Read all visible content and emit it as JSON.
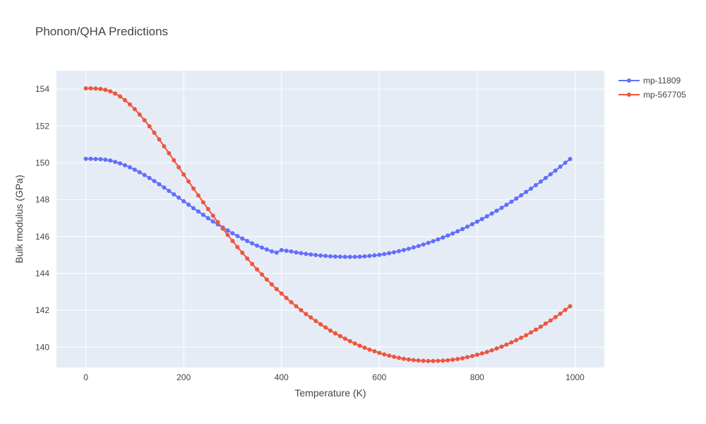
{
  "chart_data": {
    "type": "line",
    "title": "Phonon/QHA Predictions",
    "xlabel": "Temperature (K)",
    "ylabel": "Bulk modulus (GPa)",
    "xlim": [
      -60,
      1060
    ],
    "ylim": [
      138.9,
      155
    ],
    "x_ticks": [
      0,
      200,
      400,
      600,
      800,
      1000
    ],
    "y_ticks": [
      140,
      142,
      144,
      146,
      148,
      150,
      152,
      154
    ],
    "grid": true,
    "legend_position": "top-right",
    "colors": {
      "plot_bg": "#E5ECF6",
      "grid": "#FFFFFF"
    },
    "x": [
      0,
      10,
      20,
      30,
      40,
      50,
      60,
      70,
      80,
      90,
      100,
      110,
      120,
      130,
      140,
      150,
      160,
      170,
      180,
      190,
      200,
      210,
      220,
      230,
      240,
      250,
      260,
      270,
      280,
      290,
      300,
      310,
      320,
      330,
      340,
      350,
      360,
      370,
      380,
      390,
      400,
      410,
      420,
      430,
      440,
      450,
      460,
      470,
      480,
      490,
      500,
      510,
      520,
      530,
      540,
      550,
      560,
      570,
      580,
      590,
      600,
      610,
      620,
      630,
      640,
      650,
      660,
      670,
      680,
      690,
      700,
      710,
      720,
      730,
      740,
      750,
      760,
      770,
      780,
      790,
      800,
      810,
      820,
      830,
      840,
      850,
      860,
      870,
      880,
      890,
      900,
      910,
      920,
      930,
      940,
      950,
      960,
      970,
      980,
      990
    ],
    "series": [
      {
        "name": "mp-11809",
        "color": "#636EFA",
        "values": [
          150.22,
          150.22,
          150.21,
          150.2,
          150.17,
          150.12,
          150.05,
          149.97,
          149.87,
          149.76,
          149.63,
          149.49,
          149.34,
          149.18,
          149.01,
          148.84,
          148.66,
          148.48,
          148.29,
          148.11,
          147.92,
          147.73,
          147.54,
          147.36,
          147.18,
          147,
          146.82,
          146.66,
          146.49,
          146.33,
          146.18,
          146.03,
          145.89,
          145.76,
          145.63,
          145.51,
          145.4,
          145.3,
          145.2,
          145.13,
          145.27,
          145.23,
          145.19,
          145.14,
          145.1,
          145.06,
          145.03,
          145,
          144.97,
          144.95,
          144.93,
          144.92,
          144.91,
          144.9,
          144.9,
          144.9,
          144.91,
          144.93,
          144.95,
          144.98,
          145.01,
          145.05,
          145.1,
          145.15,
          145.21,
          145.27,
          145.34,
          145.41,
          145.49,
          145.57,
          145.66,
          145.75,
          145.85,
          145.95,
          146.06,
          146.17,
          146.29,
          146.41,
          146.54,
          146.67,
          146.81,
          146.95,
          147.1,
          147.25,
          147.4,
          147.56,
          147.72,
          147.89,
          148.06,
          148.24,
          148.42,
          148.6,
          148.79,
          148.98,
          149.18,
          149.38,
          149.58,
          149.79,
          150.0,
          150.21
        ]
      },
      {
        "name": "mp-567705",
        "color": "#EF553B",
        "values": [
          154.04,
          154.04,
          154.03,
          154.01,
          153.96,
          153.88,
          153.76,
          153.6,
          153.4,
          153.17,
          152.91,
          152.62,
          152.31,
          151.98,
          151.63,
          151.27,
          150.9,
          150.52,
          150.14,
          149.76,
          149.37,
          148.99,
          148.61,
          148.23,
          147.86,
          147.49,
          147.13,
          146.78,
          146.43,
          146.09,
          145.76,
          145.43,
          145.12,
          144.81,
          144.51,
          144.22,
          143.94,
          143.67,
          143.41,
          143.15,
          142.91,
          142.67,
          142.44,
          142.22,
          142.01,
          141.8,
          141.61,
          141.42,
          141.24,
          141.07,
          140.9,
          140.75,
          140.6,
          140.46,
          140.33,
          140.2,
          140.08,
          139.97,
          139.87,
          139.78,
          139.69,
          139.61,
          139.54,
          139.48,
          139.42,
          139.37,
          139.33,
          139.3,
          139.28,
          139.26,
          139.25,
          139.25,
          139.26,
          139.27,
          139.29,
          139.32,
          139.36,
          139.4,
          139.46,
          139.52,
          139.59,
          139.66,
          139.74,
          139.83,
          139.93,
          140.03,
          140.14,
          140.26,
          140.38,
          140.51,
          140.65,
          140.8,
          140.95,
          141.11,
          141.28,
          141.45,
          141.63,
          141.82,
          142.02,
          142.22
        ]
      }
    ]
  }
}
